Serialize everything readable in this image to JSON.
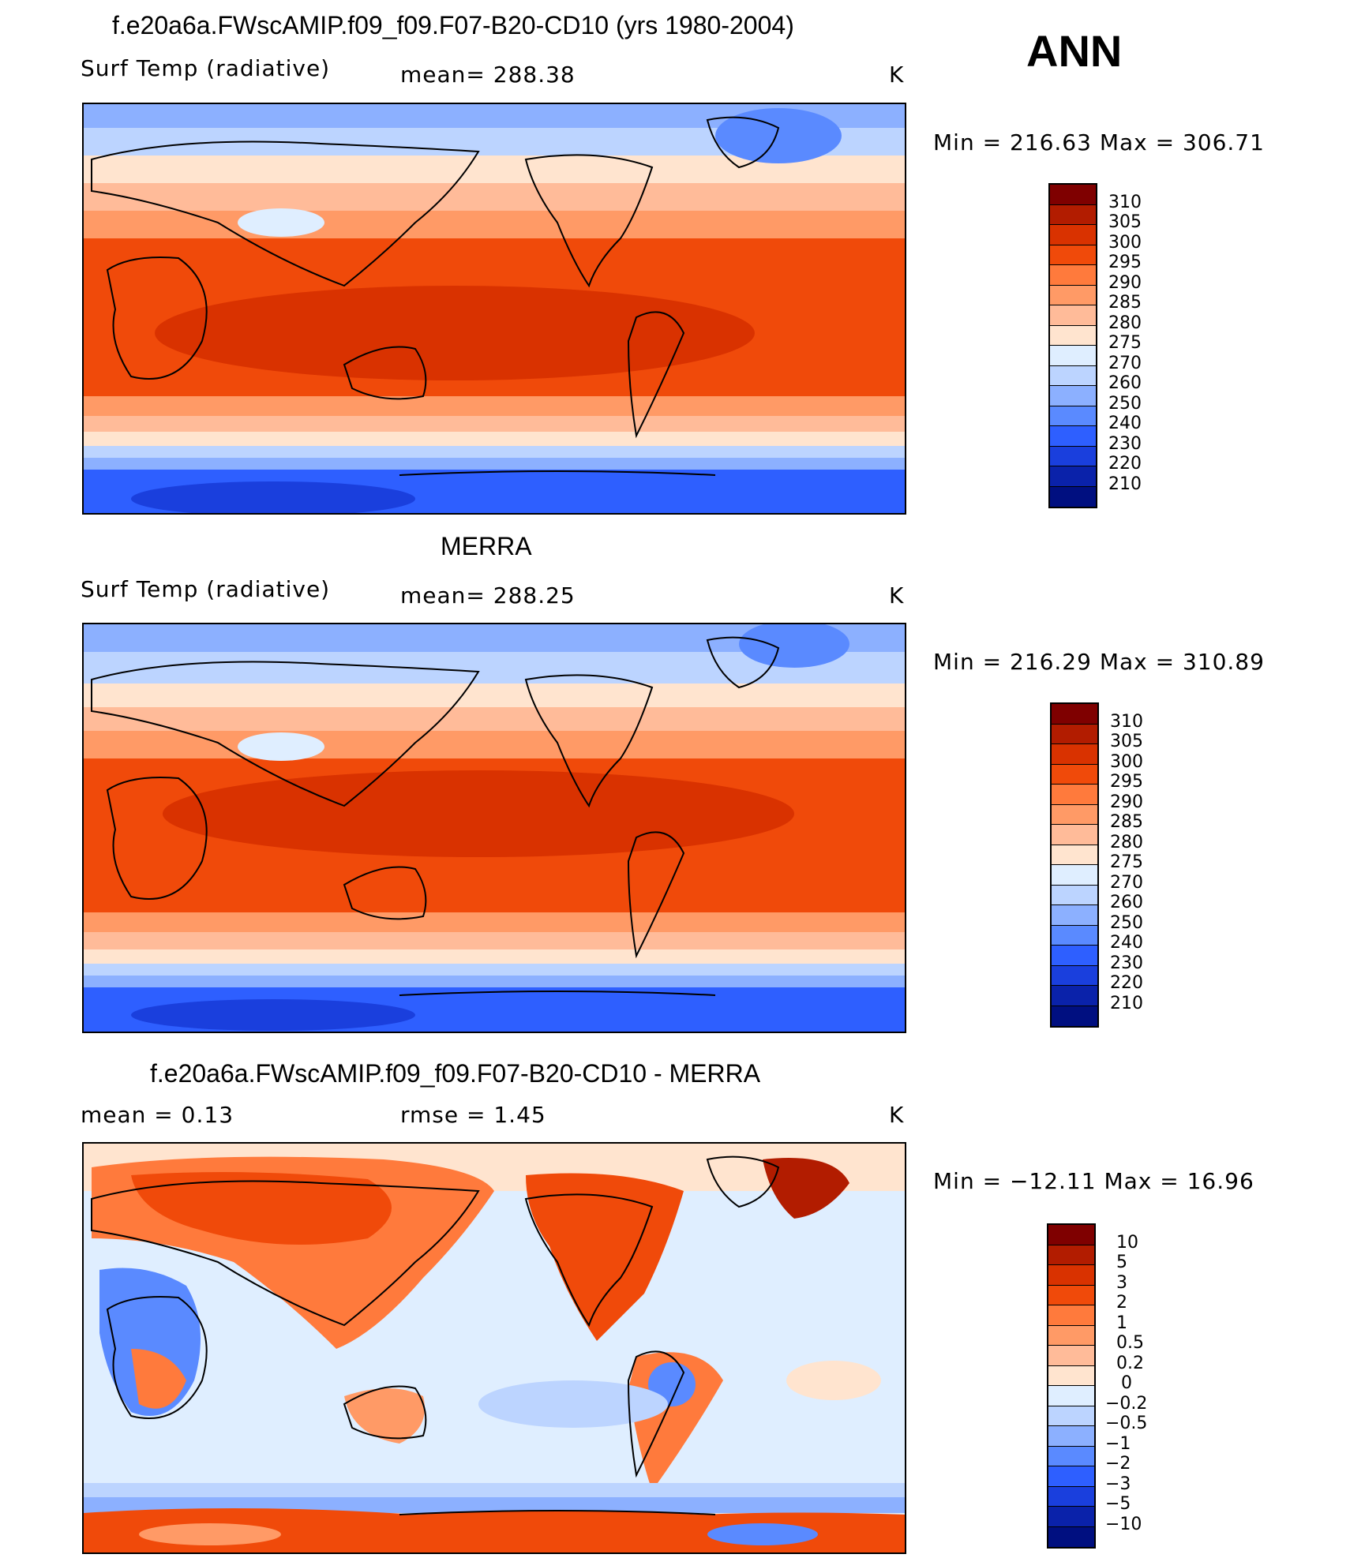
{
  "season": "ANN",
  "panels": [
    {
      "title": "f.e20a6a.FWscAMIP.f09_f09.F07-B20-CD10 (yrs 1980-2004)",
      "left_label": "Surf Temp (radiative)",
      "center_label": "mean=  288.38",
      "units": "K",
      "minmax": "Min  =  216.63  Max  =  306.71",
      "colorbar_levels": [
        "310",
        "305",
        "300",
        "295",
        "290",
        "285",
        "280",
        "275",
        "270",
        "260",
        "250",
        "240",
        "230",
        "220",
        "210"
      ]
    },
    {
      "title": "MERRA",
      "left_label": "Surf Temp (radiative)",
      "center_label": "mean=  288.25",
      "units": "K",
      "minmax": "Min  =  216.29  Max  =  310.89",
      "colorbar_levels": [
        "310",
        "305",
        "300",
        "295",
        "290",
        "285",
        "280",
        "275",
        "270",
        "260",
        "250",
        "240",
        "230",
        "220",
        "210"
      ]
    },
    {
      "title": "f.e20a6a.FWscAMIP.f09_f09.F07-B20-CD10 - MERRA",
      "left_label": "mean  =      0.13",
      "center_label": "rmse  =      1.45",
      "units": "K",
      "minmax": "Min  =  −12.11  Max  =    16.96",
      "colorbar_levels": [
        "10",
        "5",
        "3",
        "2",
        "1",
        "0.5",
        "0.2",
        "0",
        "−0.2",
        "−0.5",
        "−1",
        "−2",
        "−3",
        "−5",
        "−10"
      ]
    }
  ],
  "palette": {
    "abs": [
      "#7f0000",
      "#b21c00",
      "#d93200",
      "#f04a0a",
      "#ff7a3c",
      "#ff9a66",
      "#ffbb99",
      "#ffe4cf",
      "#dfeeff",
      "#bcd4ff",
      "#8cb0ff",
      "#5a8aff",
      "#2e5fff",
      "#1a3fdd",
      "#0a22aa",
      "#000f80"
    ],
    "diff": [
      "#7f0000",
      "#b21c00",
      "#d93200",
      "#f04a0a",
      "#ff7a3c",
      "#ff9a66",
      "#ffbb99",
      "#ffe4cf",
      "#dfeeff",
      "#bcd4ff",
      "#8cb0ff",
      "#5a8aff",
      "#2e5fff",
      "#1a3fdd",
      "#0a22aa",
      "#000f80"
    ]
  }
}
